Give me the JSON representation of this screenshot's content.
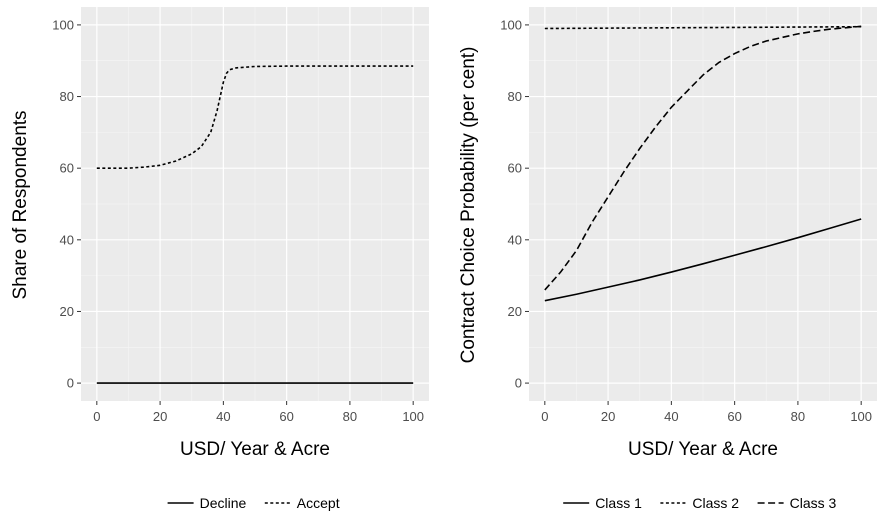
{
  "chart_data": [
    {
      "type": "line",
      "title": "",
      "xlabel": "USD/ Year & Acre",
      "ylabel": "Share of Respondents",
      "xlim": [
        0,
        100
      ],
      "ylim": [
        0,
        100
      ],
      "xticks": [
        0,
        20,
        40,
        60,
        80,
        100
      ],
      "yticks": [
        0,
        20,
        40,
        60,
        80,
        100
      ],
      "grid": true,
      "legend_position": "bottom",
      "series": [
        {
          "name": "Decline",
          "linestyle": "solid",
          "x": [
            0,
            10,
            20,
            30,
            40,
            50,
            60,
            70,
            80,
            90,
            100
          ],
          "y": [
            0,
            0,
            0,
            0,
            0,
            0,
            0,
            0,
            0,
            0,
            0
          ]
        },
        {
          "name": "Accept",
          "linestyle": "dotted",
          "x": [
            0,
            5,
            10,
            15,
            20,
            25,
            30,
            33,
            36,
            38,
            40,
            41,
            42,
            44,
            47,
            50,
            60,
            70,
            80,
            90,
            100
          ],
          "y": [
            60,
            60,
            60,
            60.3,
            60.8,
            62,
            64,
            66,
            70,
            76,
            84,
            86.5,
            87.5,
            88,
            88.2,
            88.4,
            88.5,
            88.5,
            88.5,
            88.5,
            88.5
          ]
        }
      ]
    },
    {
      "type": "line",
      "title": "",
      "xlabel": "USD/ Year & Acre",
      "ylabel": "Contract Choice Probability (per cent)",
      "xlim": [
        0,
        100
      ],
      "ylim": [
        0,
        100
      ],
      "xticks": [
        0,
        20,
        40,
        60,
        80,
        100
      ],
      "yticks": [
        0,
        20,
        40,
        60,
        80,
        100
      ],
      "grid": true,
      "legend_position": "bottom",
      "series": [
        {
          "name": "Class 1",
          "linestyle": "solid",
          "x": [
            0,
            10,
            20,
            30,
            40,
            50,
            60,
            70,
            80,
            90,
            100
          ],
          "y": [
            23,
            24.8,
            26.8,
            28.8,
            31,
            33.3,
            35.7,
            38.1,
            40.6,
            43.2,
            45.8
          ]
        },
        {
          "name": "Class 2",
          "linestyle": "dotted",
          "x": [
            0,
            20,
            40,
            60,
            80,
            100
          ],
          "y": [
            99,
            99.1,
            99.2,
            99.3,
            99.4,
            99.5
          ]
        },
        {
          "name": "Class 3",
          "linestyle": "dashed",
          "x": [
            0,
            5,
            10,
            15,
            20,
            25,
            30,
            35,
            40,
            45,
            50,
            55,
            60,
            65,
            70,
            75,
            80,
            85,
            90,
            95,
            100
          ],
          "y": [
            26,
            31,
            37,
            45,
            52,
            59,
            65.5,
            71.5,
            77,
            81.5,
            86,
            89.5,
            92,
            94,
            95.5,
            96.5,
            97.5,
            98.2,
            98.8,
            99.2,
            99.6
          ]
        }
      ]
    }
  ]
}
